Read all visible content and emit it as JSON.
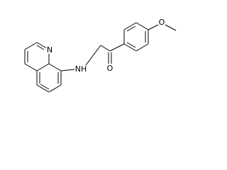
{
  "atoms": [
    {
      "label": "N"
    },
    {
      "label": "NH"
    },
    {
      "label": "O"
    },
    {
      "label": "O"
    }
  ]
}
